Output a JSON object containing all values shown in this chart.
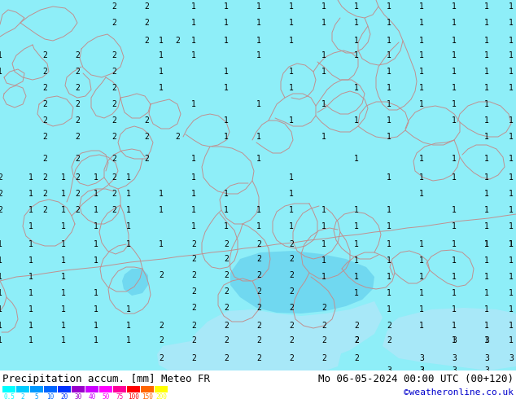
{
  "title_left": "Precipitation accum. [mm] Meteo FR",
  "title_right": "Mo 06-05-2024 00:00 UTC (00+120)",
  "credit": "©weatheronline.co.uk",
  "bg_color": "#8EEEF8",
  "title_bg": "#FFFFFF",
  "legend_values": [
    "0.5",
    "2",
    "5",
    "10",
    "20",
    "30",
    "40",
    "50",
    "75",
    "100",
    "150",
    "200"
  ],
  "legend_colors": [
    "#00FFFF",
    "#00CCFF",
    "#0099FF",
    "#0066FF",
    "#0033FF",
    "#9900CC",
    "#CC00FF",
    "#FF00FF",
    "#FF0099",
    "#FF0000",
    "#FF6600",
    "#FFFF00"
  ],
  "map_line_color": "#C09090",
  "label_color": "#000000",
  "credit_color": "#0000CC",
  "title_fontsize": 9,
  "credit_fontsize": 8,
  "label_fontsize": 7,
  "blob_medium": "#70D8F0",
  "blob_light": "#A8E8F8",
  "blob_small": "#80D0E8"
}
